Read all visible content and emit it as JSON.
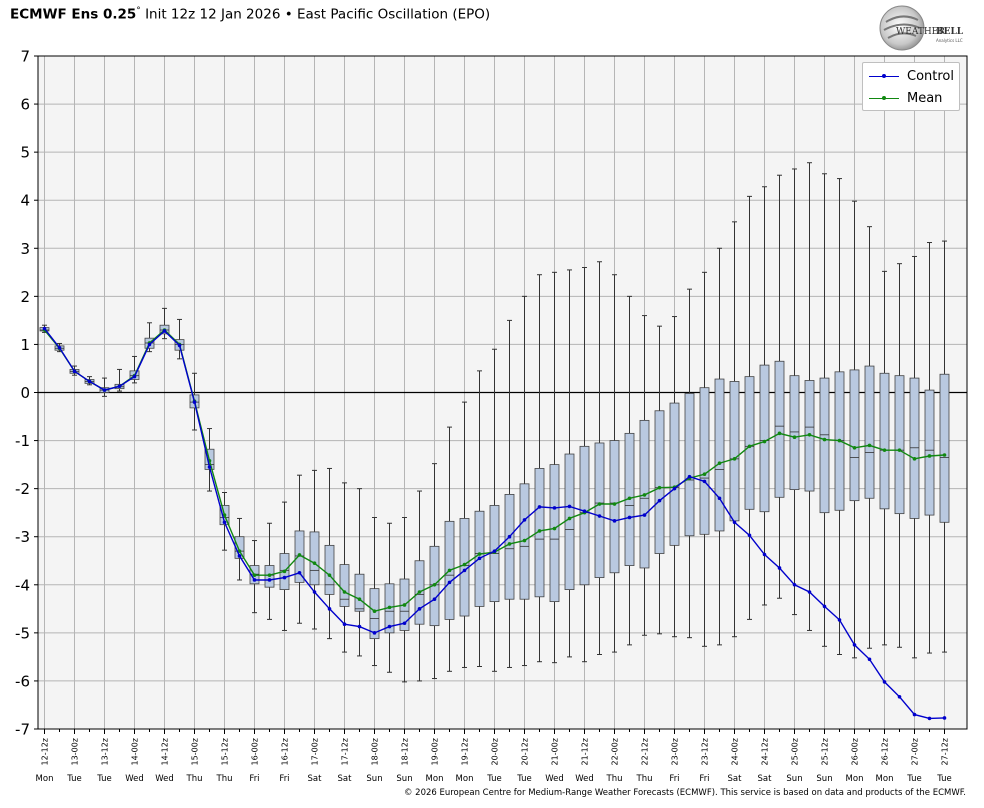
{
  "title": {
    "model": "ECMWF Ens 0.25",
    "degree": "°",
    "rest": "Init 12z 12 Jan 2026 • East Pacific Oscillation (EPO)"
  },
  "logo": {
    "word1": "WEATHER",
    "word2": "BELL",
    "sub": "Analytics LLC"
  },
  "copyright": "© 2026 European Centre for Medium-Range Weather Forecasts (ECMWF). This service is based on data and products of the ECMWF.",
  "legend": [
    {
      "name": "Control",
      "color": "#0000cc"
    },
    {
      "name": "Mean",
      "color": "#118811"
    }
  ],
  "chart_data": {
    "type": "box-and-line",
    "ylim": [
      -7,
      7
    ],
    "yticks": [
      -7,
      -6,
      -5,
      -4,
      -3,
      -2,
      -1,
      0,
      1,
      2,
      3,
      4,
      5,
      6,
      7
    ],
    "grid": true,
    "legend_position": "top-right",
    "x_labels": [
      "12-12z",
      "13-00z",
      "13-12z",
      "14-00z",
      "14-12z",
      "15-00z",
      "15-12z",
      "16-00z",
      "16-12z",
      "17-00z",
      "17-12z",
      "18-00z",
      "18-12z",
      "19-00z",
      "19-12z",
      "20-00z",
      "20-12z",
      "21-00z",
      "21-12z",
      "22-00z",
      "22-12z",
      "23-00z",
      "23-12z",
      "24-00z",
      "24-12z",
      "25-00z",
      "25-12z",
      "26-00z",
      "26-12z",
      "27-00z",
      "27-12z"
    ],
    "x_days": [
      "Mon",
      "Tue",
      "Tue",
      "Wed",
      "Wed",
      "Thu",
      "Thu",
      "Fri",
      "Fri",
      "Sat",
      "Sat",
      "Sun",
      "Sun",
      "Mon",
      "Mon",
      "Tue",
      "Tue",
      "Wed",
      "Wed",
      "Thu",
      "Thu",
      "Fri",
      "Fri",
      "Sat",
      "Sat",
      "Sun",
      "Sun",
      "Mon",
      "Mon",
      "Tue",
      "Tue"
    ],
    "steps_per_label": 2,
    "colors": {
      "box_fill": "#b9c9e0",
      "box_edge": "#444444",
      "whisker": "#333333",
      "plot_bg": "#f4f4f4",
      "grid": "#b5b5b5"
    },
    "series": [
      {
        "name": "Control",
        "values": [
          1.33,
          0.93,
          0.44,
          0.23,
          0.05,
          0.13,
          0.33,
          1.0,
          1.28,
          0.98,
          -0.2,
          -1.55,
          -2.7,
          -3.4,
          -3.9,
          -3.9,
          -3.85,
          -3.75,
          -4.15,
          -4.5,
          -4.82,
          -4.87,
          -5.0,
          -4.87,
          -4.8,
          -4.5,
          -4.3,
          -3.95,
          -3.7,
          -3.45,
          -3.3,
          -3.0,
          -2.65,
          -2.38,
          -2.4,
          -2.37,
          -2.47,
          -2.57,
          -2.67,
          -2.6,
          -2.55,
          -2.25,
          -2.0,
          -1.75,
          -1.85,
          -2.2,
          -2.7,
          -2.97,
          -3.37,
          -3.65,
          -4.0,
          -4.15,
          -4.45,
          -4.73,
          -5.25,
          -5.55,
          -6.02,
          -6.33,
          -6.7,
          -6.78,
          -6.77
        ]
      },
      {
        "name": "Mean",
        "values": [
          1.3,
          0.92,
          0.44,
          0.23,
          0.05,
          0.13,
          0.35,
          1.03,
          1.3,
          1.0,
          -0.18,
          -1.42,
          -2.55,
          -3.3,
          -3.8,
          -3.8,
          -3.72,
          -3.38,
          -3.55,
          -3.8,
          -4.15,
          -4.3,
          -4.55,
          -4.47,
          -4.42,
          -4.15,
          -4.0,
          -3.7,
          -3.58,
          -3.36,
          -3.32,
          -3.15,
          -3.08,
          -2.88,
          -2.83,
          -2.62,
          -2.5,
          -2.32,
          -2.32,
          -2.2,
          -2.13,
          -1.98,
          -1.97,
          -1.78,
          -1.7,
          -1.47,
          -1.38,
          -1.12,
          -1.02,
          -0.85,
          -0.93,
          -0.88,
          -0.98,
          -1.0,
          -1.15,
          -1.1,
          -1.2,
          -1.2,
          -1.38,
          -1.32,
          -1.3
        ]
      }
    ],
    "boxes": {
      "min": [
        1.25,
        0.85,
        0.36,
        0.16,
        -0.08,
        0.03,
        0.2,
        0.85,
        1.12,
        0.7,
        -0.78,
        -2.05,
        -3.28,
        -3.9,
        -4.58,
        -4.72,
        -4.95,
        -4.8,
        -4.92,
        -5.12,
        -5.4,
        -5.48,
        -5.68,
        -5.82,
        -6.02,
        -6.0,
        -5.95,
        -5.8,
        -5.72,
        -5.7,
        -5.8,
        -5.72,
        -5.68,
        -5.6,
        -5.62,
        -5.5,
        -5.6,
        -5.45,
        -5.4,
        -5.25,
        -5.05,
        -5.02,
        -5.08,
        -5.1,
        -5.28,
        -5.25,
        -5.08,
        -4.72,
        -4.42,
        -4.28,
        -4.62,
        -4.95,
        -5.28,
        -5.45,
        -5.52,
        -5.32,
        -5.25,
        -5.3,
        -5.52,
        -5.42,
        -5.4
      ],
      "q1": [
        1.28,
        0.88,
        0.4,
        0.19,
        0.0,
        0.08,
        0.27,
        0.92,
        1.22,
        0.88,
        -0.32,
        -1.6,
        -2.75,
        -3.45,
        -3.98,
        -4.05,
        -4.1,
        -3.95,
        -4.0,
        -4.2,
        -4.45,
        -4.55,
        -5.12,
        -5.0,
        -4.95,
        -4.82,
        -4.85,
        -4.72,
        -4.65,
        -4.45,
        -4.35,
        -4.3,
        -4.3,
        -4.25,
        -4.35,
        -4.1,
        -4.0,
        -3.85,
        -3.75,
        -3.6,
        -3.65,
        -3.35,
        -3.18,
        -2.98,
        -2.95,
        -2.88,
        -2.67,
        -2.43,
        -2.48,
        -2.18,
        -2.02,
        -2.05,
        -2.5,
        -2.45,
        -2.25,
        -2.2,
        -2.42,
        -2.52,
        -2.62,
        -2.55,
        -2.7
      ],
      "median": [
        1.3,
        0.92,
        0.44,
        0.23,
        0.05,
        0.12,
        0.35,
        1.03,
        1.3,
        1.0,
        -0.2,
        -1.5,
        -2.6,
        -3.3,
        -3.78,
        -3.8,
        -3.7,
        -3.4,
        -3.7,
        -4.0,
        -4.3,
        -4.5,
        -4.7,
        -4.55,
        -4.55,
        -4.2,
        -4.0,
        -3.8,
        -3.6,
        -3.35,
        -3.35,
        -3.25,
        -3.2,
        -3.05,
        -3.05,
        -2.85,
        -2.5,
        -2.3,
        -2.3,
        -2.35,
        -2.2,
        -1.98,
        -1.98,
        -1.82,
        -1.78,
        -1.6,
        -1.38,
        -1.12,
        -1.0,
        -0.7,
        -0.82,
        -0.72,
        -0.88,
        -1.0,
        -1.35,
        -1.25,
        -1.2,
        -1.2,
        -1.15,
        -1.2,
        -1.35
      ],
      "q3": [
        1.35,
        0.97,
        0.48,
        0.27,
        0.1,
        0.17,
        0.45,
        1.13,
        1.4,
        1.1,
        -0.05,
        -1.18,
        -2.35,
        -3.0,
        -3.6,
        -3.6,
        -3.35,
        -2.88,
        -2.9,
        -3.18,
        -3.58,
        -3.78,
        -4.08,
        -3.98,
        -3.88,
        -3.5,
        -3.2,
        -2.68,
        -2.62,
        -2.47,
        -2.35,
        -2.12,
        -1.9,
        -1.58,
        -1.5,
        -1.28,
        -1.12,
        -1.05,
        -1.0,
        -0.85,
        -0.58,
        -0.38,
        -0.22,
        -0.02,
        0.1,
        0.28,
        0.23,
        0.33,
        0.57,
        0.65,
        0.35,
        0.25,
        0.3,
        0.43,
        0.47,
        0.55,
        0.4,
        0.35,
        0.3,
        0.05,
        0.38
      ],
      "max": [
        1.4,
        1.02,
        0.55,
        0.33,
        0.3,
        0.48,
        0.75,
        1.45,
        1.75,
        1.52,
        0.4,
        -0.75,
        -2.08,
        -2.62,
        -3.08,
        -2.72,
        -2.28,
        -1.72,
        -1.62,
        -1.58,
        -1.88,
        -2.0,
        -2.6,
        -2.72,
        -2.6,
        -2.05,
        -1.48,
        -0.72,
        -0.2,
        0.45,
        0.9,
        1.5,
        2.0,
        2.45,
        2.5,
        2.55,
        2.6,
        2.72,
        2.45,
        2.0,
        1.6,
        1.38,
        1.58,
        2.15,
        2.5,
        3.0,
        3.55,
        4.08,
        4.28,
        4.52,
        4.65,
        4.78,
        4.55,
        4.45,
        3.98,
        3.45,
        2.52,
        2.68,
        2.83,
        3.12,
        3.15
      ]
    }
  }
}
